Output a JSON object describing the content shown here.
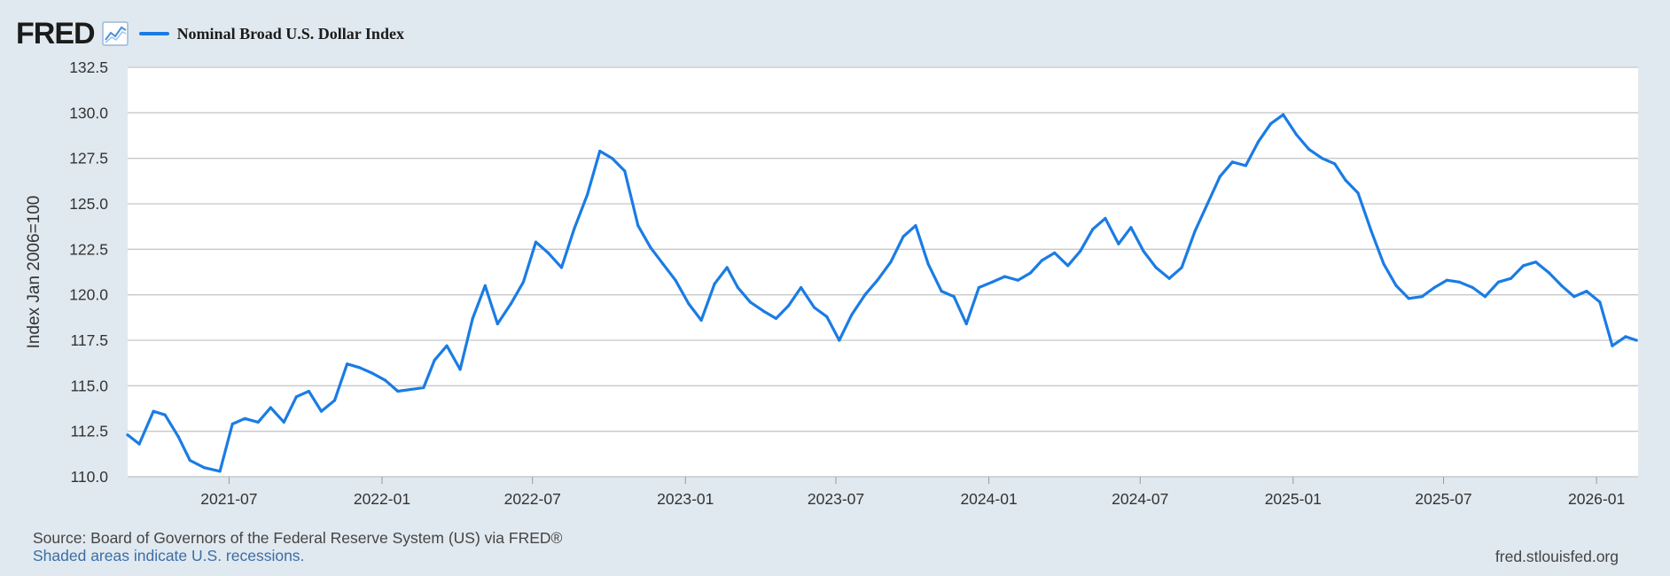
{
  "header": {
    "logo_text": "FRED",
    "series_label": "Nominal Broad U.S. Dollar Index"
  },
  "footer": {
    "source": "Source: Board of Governors of the Federal Reserve System (US) via FRED®",
    "recession_note": "Shaded areas indicate U.S. recessions.",
    "url": "fred.stlouisfed.org"
  },
  "colors": {
    "line": "#1a7ce4",
    "grid": "#c8c8c8",
    "background": "#e1e9f0",
    "plot_background": "#ffffff"
  },
  "icons": [
    "graph-icon"
  ],
  "chart_data": {
    "type": "line",
    "title": "",
    "xlabel": "",
    "ylabel": "Index Jan 2006=100",
    "ylim": [
      110.0,
      132.5
    ],
    "xlim": [
      "2021-03-01",
      "2026-02-20"
    ],
    "yticks": [
      "110.0",
      "112.5",
      "115.0",
      "117.5",
      "120.0",
      "122.5",
      "125.0",
      "127.5",
      "130.0",
      "132.5"
    ],
    "xticks": [
      "2021-07",
      "2022-01",
      "2022-07",
      "2023-01",
      "2023-07",
      "2024-01",
      "2024-07",
      "2025-01",
      "2025-07",
      "2026-01"
    ],
    "grid": true,
    "legend": "top-left",
    "series": [
      {
        "name": "Nominal Broad U.S. Dollar Index",
        "x": [
          "2021-03-01",
          "2021-03-15",
          "2021-04-01",
          "2021-04-15",
          "2021-05-01",
          "2021-05-15",
          "2021-06-01",
          "2021-06-20",
          "2021-07-05",
          "2021-07-20",
          "2021-08-05",
          "2021-08-20",
          "2021-09-05",
          "2021-09-20",
          "2021-10-05",
          "2021-10-20",
          "2021-11-05",
          "2021-11-20",
          "2021-12-05",
          "2021-12-20",
          "2022-01-05",
          "2022-01-20",
          "2022-02-05",
          "2022-02-20",
          "2022-03-05",
          "2022-03-20",
          "2022-04-05",
          "2022-04-20",
          "2022-05-05",
          "2022-05-20",
          "2022-06-05",
          "2022-06-20",
          "2022-07-05",
          "2022-07-20",
          "2022-08-05",
          "2022-08-20",
          "2022-09-05",
          "2022-09-20",
          "2022-10-05",
          "2022-10-20",
          "2022-11-05",
          "2022-11-20",
          "2022-12-05",
          "2022-12-20",
          "2023-01-05",
          "2023-01-20",
          "2023-02-05",
          "2023-02-20",
          "2023-03-05",
          "2023-03-20",
          "2023-04-05",
          "2023-04-20",
          "2023-05-05",
          "2023-05-20",
          "2023-06-05",
          "2023-06-20",
          "2023-07-05",
          "2023-07-20",
          "2023-08-05",
          "2023-08-20",
          "2023-09-05",
          "2023-09-20",
          "2023-10-05",
          "2023-10-20",
          "2023-11-05",
          "2023-11-20",
          "2023-12-05",
          "2023-12-20",
          "2024-01-05",
          "2024-01-20",
          "2024-02-05",
          "2024-02-20",
          "2024-03-05",
          "2024-03-20",
          "2024-04-05",
          "2024-04-20",
          "2024-05-05",
          "2024-05-20",
          "2024-06-05",
          "2024-06-20",
          "2024-07-05",
          "2024-07-20",
          "2024-08-05",
          "2024-08-20",
          "2024-09-05",
          "2024-09-20",
          "2024-10-05",
          "2024-10-20",
          "2024-11-05",
          "2024-11-20",
          "2024-12-05",
          "2024-12-20",
          "2025-01-05",
          "2025-01-20",
          "2025-02-05",
          "2025-02-20",
          "2025-03-05",
          "2025-03-20",
          "2025-04-05",
          "2025-04-20",
          "2025-05-05",
          "2025-05-20",
          "2025-06-05",
          "2025-06-20",
          "2025-07-05",
          "2025-07-20",
          "2025-08-05",
          "2025-08-20",
          "2025-09-05",
          "2025-09-20",
          "2025-10-05",
          "2025-10-20",
          "2025-11-05",
          "2025-11-20",
          "2025-12-05",
          "2025-12-20",
          "2026-01-05",
          "2026-01-20",
          "2026-02-05",
          "2026-02-18"
        ],
        "values": [
          112.3,
          111.8,
          113.6,
          113.4,
          112.2,
          110.9,
          110.5,
          110.3,
          112.9,
          113.2,
          113.0,
          113.8,
          113.0,
          114.4,
          114.7,
          113.6,
          114.2,
          116.2,
          116.0,
          115.7,
          115.3,
          114.7,
          114.8,
          114.9,
          116.4,
          117.2,
          115.9,
          118.7,
          120.5,
          118.4,
          119.5,
          120.7,
          122.9,
          122.3,
          121.5,
          123.6,
          125.5,
          127.9,
          127.5,
          126.8,
          123.8,
          122.6,
          121.7,
          120.8,
          119.5,
          118.6,
          120.6,
          121.5,
          120.4,
          119.6,
          119.1,
          118.7,
          119.4,
          120.4,
          119.3,
          118.8,
          117.5,
          118.9,
          120.0,
          120.8,
          121.8,
          123.2,
          123.8,
          121.7,
          120.2,
          119.9,
          118.4,
          120.4,
          120.7,
          121.0,
          120.8,
          121.2,
          121.9,
          122.3,
          121.6,
          122.4,
          123.6,
          124.2,
          122.8,
          123.7,
          122.4,
          121.5,
          120.9,
          121.5,
          123.5,
          125.0,
          126.5,
          127.3,
          127.1,
          128.4,
          129.4,
          129.9,
          128.8,
          128.0,
          127.5,
          127.2,
          126.3,
          125.6,
          123.5,
          121.7,
          120.5,
          119.8,
          119.9,
          120.4,
          120.8,
          120.7,
          120.4,
          119.9,
          120.7,
          120.9,
          121.6,
          121.8,
          121.2,
          120.5,
          119.9,
          120.2,
          119.6,
          117.2,
          117.7,
          117.5
        ]
      }
    ]
  }
}
